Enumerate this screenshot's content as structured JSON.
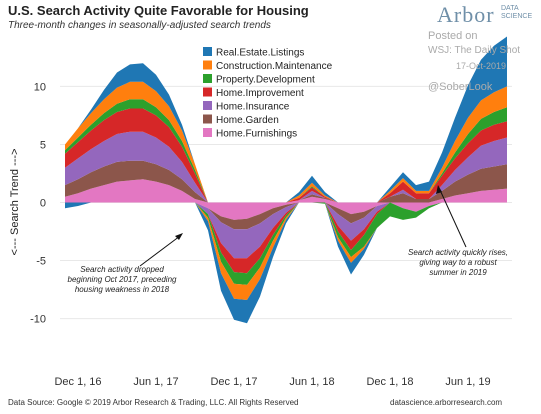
{
  "header": {
    "title": "U.S. Search Activity Quite Favorable for Housing",
    "subtitle": "Three-month changes in seasonally-adjusted search trends"
  },
  "brand": {
    "name": "Arbor",
    "sub1": "DATA",
    "sub2": "SCIENCE"
  },
  "watermark": {
    "posted": "Posted on",
    "source": "WSJ: The Daily Shot",
    "date": "17-Oct-2019",
    "handle": "@SoberLook"
  },
  "footer": {
    "left": "Data Source: Google © 2019 Arbor Research & Trading, LLC. All Rights Reserved",
    "right": "datascience.arborresearch.com"
  },
  "chart_data": {
    "type": "area",
    "ylabel": "<--- Search Trend --->",
    "ylim": [
      -14,
      14
    ],
    "yticks": [
      -10,
      -5,
      0,
      5,
      10
    ],
    "x_ticks": [
      "Dec 1, 16",
      "Jun 1, 17",
      "Dec 1, 17",
      "Jun 1, 18",
      "Dec 1, 18",
      "Jun 1, 19"
    ],
    "x": [
      "2016-11",
      "2016-12",
      "2017-01",
      "2017-02",
      "2017-03",
      "2017-04",
      "2017-05",
      "2017-06",
      "2017-07",
      "2017-08",
      "2017-09",
      "2017-10",
      "2017-11",
      "2017-12",
      "2018-01",
      "2018-02",
      "2018-03",
      "2018-04",
      "2018-05",
      "2018-06",
      "2018-07",
      "2018-08",
      "2018-09",
      "2018-10",
      "2018-11",
      "2018-12",
      "2019-01",
      "2019-02",
      "2019-03",
      "2019-04",
      "2019-05",
      "2019-06",
      "2019-07",
      "2019-08",
      "2019-09"
    ],
    "legend_position": "top-center",
    "series": [
      {
        "name": "Home.Furnishings",
        "color": "#e377c2",
        "values": [
          0.5,
          0.8,
          1.2,
          1.5,
          1.8,
          1.9,
          2.0,
          1.8,
          1.5,
          1.0,
          0.3,
          -0.5,
          -1.2,
          -1.5,
          -1.4,
          -1.0,
          -0.5,
          -0.2,
          0.2,
          0.5,
          0.3,
          -0.5,
          -1.0,
          -0.8,
          -0.3,
          0.0,
          -0.5,
          -0.8,
          -0.3,
          0.3,
          0.6,
          0.8,
          1.0,
          1.1,
          1.2
        ]
      },
      {
        "name": "Home.Garden",
        "color": "#8c564b",
        "values": [
          1.0,
          1.2,
          1.4,
          1.6,
          1.7,
          1.7,
          1.6,
          1.5,
          1.3,
          1.0,
          0.6,
          0.0,
          -0.5,
          -0.8,
          -0.9,
          -0.8,
          -0.5,
          -0.2,
          0.0,
          0.2,
          0.1,
          -0.5,
          -0.8,
          -0.5,
          0.0,
          0.5,
          0.8,
          0.3,
          0.3,
          0.7,
          1.2,
          1.6,
          1.9,
          2.0,
          2.1
        ]
      },
      {
        "name": "Home.Insurance",
        "color": "#9467bd",
        "values": [
          1.5,
          1.8,
          2.0,
          2.2,
          2.4,
          2.5,
          2.5,
          2.3,
          2.0,
          1.5,
          0.8,
          -0.5,
          -1.8,
          -2.5,
          -2.5,
          -2.0,
          -1.2,
          -0.5,
          0.0,
          0.3,
          0.0,
          -1.0,
          -1.5,
          -1.0,
          -0.5,
          0.0,
          0.3,
          0.0,
          0.0,
          0.5,
          1.0,
          1.5,
          2.0,
          2.2,
          2.3
        ]
      },
      {
        "name": "Home.Improvement",
        "color": "#d62728",
        "values": [
          1.2,
          1.4,
          1.6,
          1.8,
          1.9,
          2.0,
          2.0,
          1.9,
          1.7,
          1.3,
          0.8,
          0.0,
          -0.8,
          -1.2,
          -1.3,
          -1.0,
          -0.6,
          -0.2,
          0.2,
          0.3,
          0.1,
          -0.5,
          -0.8,
          -0.5,
          -0.2,
          0.3,
          0.7,
          0.5,
          0.5,
          0.8,
          1.0,
          1.2,
          1.3,
          1.4,
          1.4
        ]
      },
      {
        "name": "Property.Development",
        "color": "#2ca02c",
        "values": [
          0.3,
          0.4,
          0.5,
          0.6,
          0.7,
          0.8,
          0.8,
          0.7,
          0.6,
          0.5,
          0.3,
          -0.3,
          -0.8,
          -1.0,
          -1.0,
          -0.8,
          -0.5,
          -0.2,
          0.0,
          0.1,
          -0.1,
          -0.5,
          -0.6,
          -1.0,
          -1.2,
          -1.2,
          -1.0,
          -0.5,
          -0.2,
          0.2,
          0.5,
          0.8,
          1.0,
          1.1,
          1.2
        ]
      },
      {
        "name": "Construction.Maintenance",
        "color": "#ff7f0e",
        "values": [
          0.5,
          0.8,
          1.0,
          1.2,
          1.4,
          1.5,
          1.5,
          1.4,
          1.2,
          0.9,
          0.5,
          -0.3,
          -1.0,
          -1.3,
          -1.3,
          -1.0,
          -0.6,
          -0.2,
          0.2,
          0.3,
          0.1,
          -0.3,
          -0.5,
          -0.2,
          0.0,
          0.2,
          0.3,
          0.2,
          0.2,
          0.5,
          1.0,
          1.4,
          1.6,
          1.7,
          1.8
        ]
      },
      {
        "name": "Real.Estate.Listings",
        "color": "#1f77b4",
        "values": [
          -0.5,
          -0.3,
          0.3,
          0.8,
          1.3,
          1.5,
          1.6,
          1.4,
          1.0,
          0.5,
          0.0,
          -0.8,
          -1.5,
          -1.8,
          -2.0,
          -1.5,
          -0.8,
          -0.3,
          0.3,
          0.6,
          0.3,
          -0.5,
          -1.0,
          -0.5,
          0.0,
          0.3,
          0.5,
          0.5,
          0.8,
          1.3,
          2.0,
          2.8,
          3.5,
          4.0,
          4.3
        ]
      }
    ],
    "annotations": [
      {
        "lines": [
          "Search activity dropped",
          "beginning Oct 2017, preceding",
          "housing weakness in 2018"
        ]
      },
      {
        "lines": [
          "Search activity quickly rises,",
          "giving way to a robust",
          "summer in 2019"
        ]
      }
    ]
  }
}
